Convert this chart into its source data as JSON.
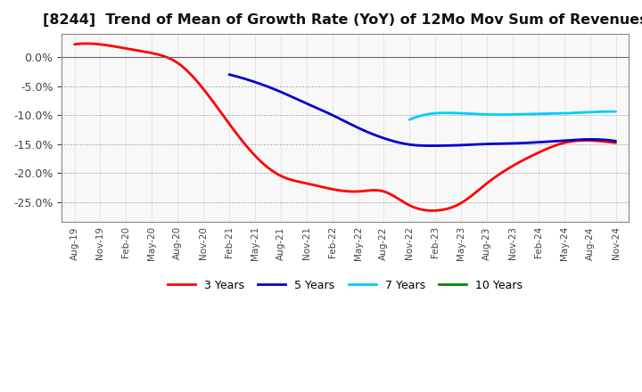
{
  "title": "[8244]  Trend of Mean of Growth Rate (YoY) of 12Mo Mov Sum of Revenues",
  "title_fontsize": 11.5,
  "background_color": "#ffffff",
  "plot_bg_color": "#f8f8f8",
  "grid_color": "#aaaaaa",
  "ylim": [
    -0.285,
    0.04
  ],
  "yticks": [
    0.0,
    -0.05,
    -0.1,
    -0.15,
    -0.2,
    -0.25
  ],
  "x_labels": [
    "Aug-19",
    "Nov-19",
    "Feb-20",
    "May-20",
    "Aug-20",
    "Nov-20",
    "Feb-21",
    "May-21",
    "Aug-21",
    "Nov-21",
    "Feb-22",
    "May-22",
    "Aug-22",
    "Nov-22",
    "Feb-23",
    "May-23",
    "Aug-23",
    "Nov-23",
    "Feb-24",
    "May-24",
    "Aug-24",
    "Nov-24"
  ],
  "series": {
    "3 Years": {
      "color": "#ff0000",
      "linewidth": 2.0,
      "data_x": [
        0,
        1,
        2,
        3,
        4,
        5,
        6,
        7,
        8,
        9,
        10,
        11,
        12,
        13,
        14,
        15,
        16,
        17,
        18,
        19,
        20,
        21
      ],
      "data_y": [
        0.022,
        0.022,
        0.015,
        0.007,
        -0.01,
        -0.055,
        -0.115,
        -0.17,
        -0.205,
        -0.218,
        -0.228,
        -0.232,
        -0.232,
        -0.256,
        -0.265,
        -0.252,
        -0.218,
        -0.188,
        -0.165,
        -0.148,
        -0.144,
        -0.148
      ]
    },
    "5 Years": {
      "color": "#0000cc",
      "linewidth": 2.0,
      "data_x": [
        6,
        7,
        8,
        9,
        10,
        11,
        12,
        13,
        14,
        15,
        16,
        17,
        18,
        19,
        20,
        21
      ],
      "data_y": [
        -0.03,
        -0.043,
        -0.06,
        -0.08,
        -0.1,
        -0.122,
        -0.14,
        -0.151,
        -0.153,
        -0.152,
        -0.15,
        -0.149,
        -0.147,
        -0.144,
        -0.142,
        -0.145
      ]
    },
    "7 Years": {
      "color": "#00ccff",
      "linewidth": 2.0,
      "data_x": [
        13,
        14,
        15,
        16,
        17,
        18,
        19,
        20,
        21
      ],
      "data_y": [
        -0.108,
        -0.097,
        -0.097,
        -0.099,
        -0.099,
        -0.098,
        -0.097,
        -0.095,
        -0.094
      ]
    },
    "10 Years": {
      "color": "#008800",
      "linewidth": 2.0,
      "data_x": [],
      "data_y": []
    }
  },
  "legend_labels": [
    "3 Years",
    "5 Years",
    "7 Years",
    "10 Years"
  ],
  "legend_colors": [
    "#ff0000",
    "#0000cc",
    "#00ccff",
    "#008800"
  ]
}
